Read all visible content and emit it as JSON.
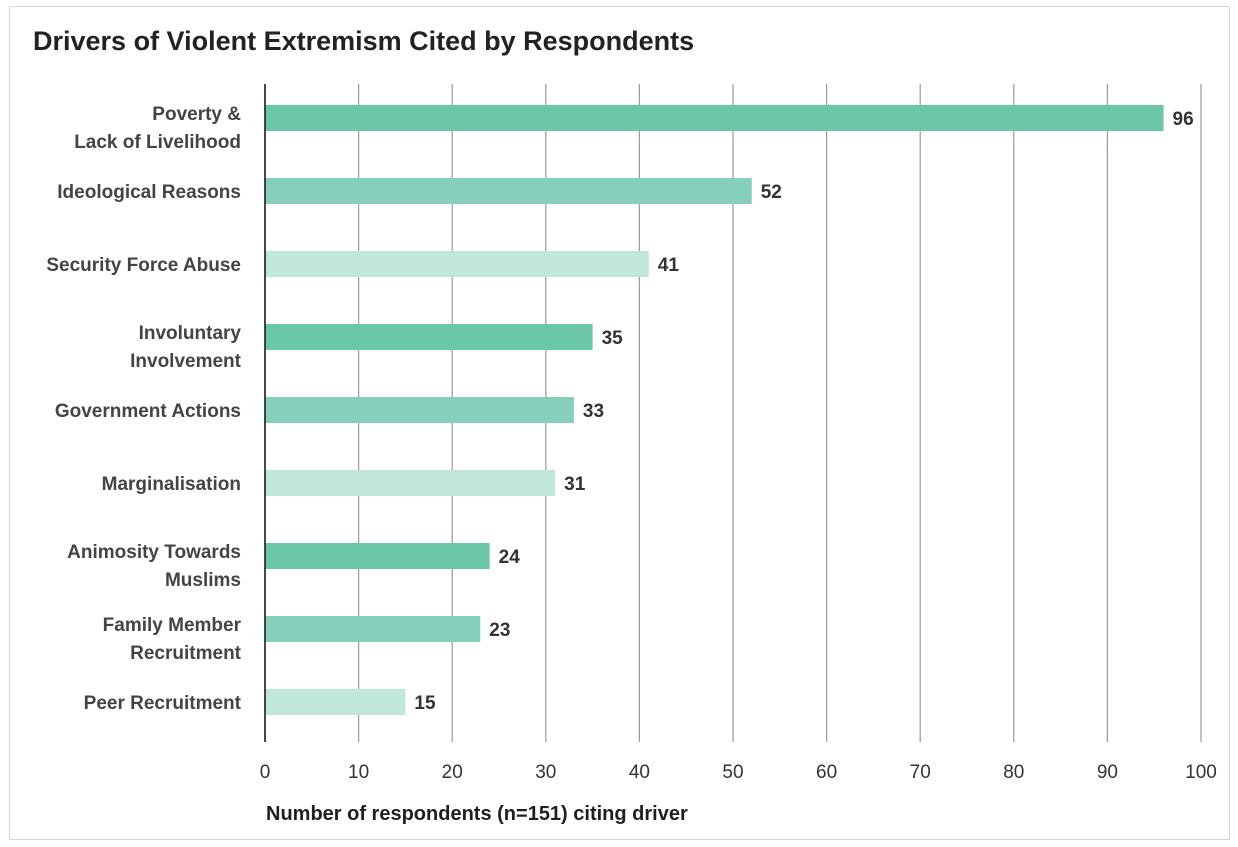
{
  "chart_data": {
    "type": "bar",
    "orientation": "horizontal",
    "title": "Drivers of Violent Extremism Cited by Respondents",
    "xlabel": "Number of respondents (n=151) citing driver",
    "ylabel": "",
    "xlim": [
      0,
      100
    ],
    "x_ticks": [
      "0",
      "10",
      "20",
      "30",
      "40",
      "50",
      "60",
      "70",
      "80",
      "90",
      "100"
    ],
    "grid": "vertical",
    "legend": "none",
    "categories": [
      [
        "Poverty &",
        "Lack of Livelihood"
      ],
      [
        "Ideological Reasons"
      ],
      [
        "Security Force Abuse"
      ],
      [
        "Involuntary",
        "Involvement"
      ],
      [
        "Government Actions"
      ],
      [
        "Marginalisation"
      ],
      [
        "Animosity Towards",
        "Muslims"
      ],
      [
        "Family Member",
        "Recruitment"
      ],
      [
        "Peer Recruitment"
      ]
    ],
    "values": [
      96,
      52,
      41,
      35,
      33,
      31,
      24,
      23,
      15
    ],
    "bar_colors": [
      "#6cc6a8",
      "#85cfbb",
      "#c1e6da",
      "#6cc6a8",
      "#85cfbb",
      "#c1e6da",
      "#6cc6a8",
      "#85cfbb",
      "#c1e6da"
    ],
    "colors": {
      "grid": "#9a9a9a",
      "axis": "#1a1a1a"
    }
  }
}
